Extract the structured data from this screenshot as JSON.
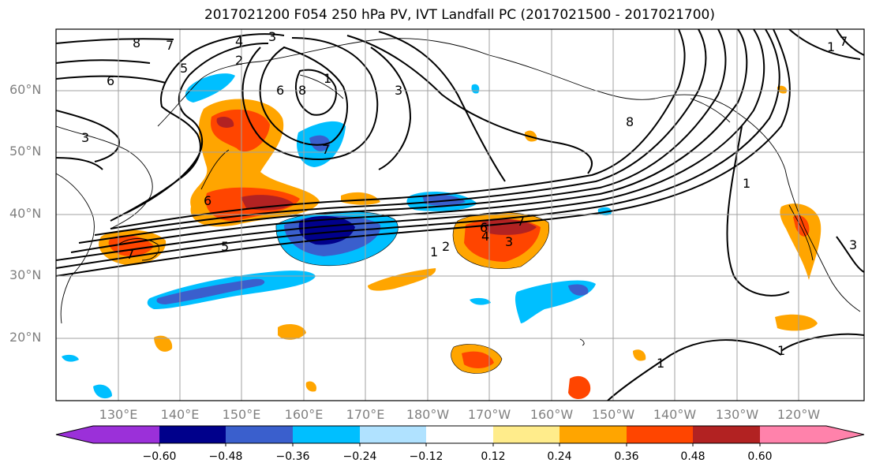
{
  "title": "2017021200 F054 250 hPa PV, IVT Landfall PC (2017021500 - 2017021700)",
  "lat_labels": [
    "60°N",
    "50°N",
    "40°N",
    "30°N",
    "20°N"
  ],
  "lon_labels": [
    "130°E",
    "140°E",
    "150°E",
    "160°E",
    "170°E",
    "180°W",
    "170°W",
    "160°W",
    "150°W",
    "140°W",
    "130°W",
    "120°W"
  ],
  "contour_labels": [
    "8",
    "7",
    "4",
    "3",
    "5",
    "2",
    "6",
    "6",
    "8",
    "3",
    "1",
    "7",
    "3",
    "6",
    "5",
    "7",
    "1",
    "2",
    "6",
    "4",
    "3",
    "7",
    "8",
    "1",
    "3",
    "1",
    "1",
    "1",
    "7"
  ],
  "colorbar": {
    "ticks": [
      "−0.60",
      "−0.48",
      "−0.36",
      "−0.24",
      "−0.12",
      "0.12",
      "0.24",
      "0.36",
      "0.48",
      "0.60"
    ],
    "colors": [
      "#9b30d9",
      "#00008b",
      "#3a5fcd",
      "#00bfff",
      "#b0e2ff",
      "#ffffff",
      "#ffec8b",
      "#ffa500",
      "#ff4500",
      "#b22222",
      "#ff82ab"
    ]
  }
}
